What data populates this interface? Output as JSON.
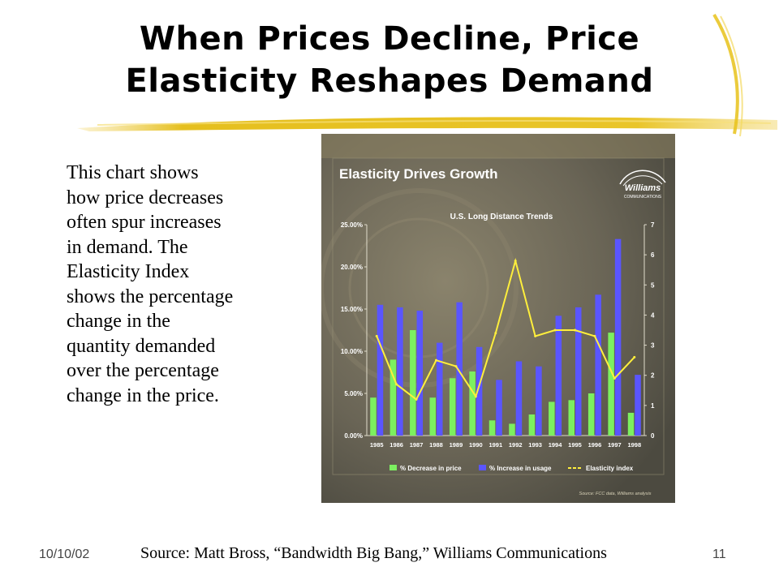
{
  "slide": {
    "title_line1": "When Prices Decline, Price",
    "title_line2": "Elasticity Reshapes Demand",
    "body_lines": [
      "This chart shows",
      "how price decreases",
      "often spur increases",
      "in demand. The",
      "Elasticity Index",
      "shows the percentage",
      "change in the",
      "quantity demanded",
      "over the percentage",
      "change in the price."
    ],
    "footer_date": "10/10/02",
    "footer_source": "Source: Matt Bross, “Bandwidth Big Bang,” Williams Communications",
    "page_number": "11"
  },
  "chart_data": {
    "type": "bar",
    "title": "Elasticity Drives Growth",
    "subtitle": "U.S. Long Distance Trends",
    "logo_text": "Williams",
    "logo_subtext": "COMMUNICATIONS",
    "categories": [
      "1985",
      "1986",
      "1987",
      "1988",
      "1989",
      "1990",
      "1991",
      "1992",
      "1993",
      "1994",
      "1995",
      "1996",
      "1997",
      "1998"
    ],
    "series": [
      {
        "name": "% Decrease in price",
        "kind": "bar",
        "axis": "left",
        "color": "#7cf060",
        "values": [
          4.5,
          9.0,
          12.5,
          4.5,
          6.8,
          7.6,
          1.8,
          1.4,
          2.5,
          4.0,
          4.2,
          5.0,
          12.2,
          2.7
        ]
      },
      {
        "name": "% Increase in usage",
        "kind": "bar",
        "axis": "left",
        "color": "#5a55ff",
        "values": [
          15.5,
          15.2,
          14.8,
          11.0,
          15.8,
          10.5,
          6.6,
          8.8,
          8.2,
          14.2,
          15.2,
          16.7,
          23.3,
          7.2
        ]
      },
      {
        "name": "Elasticity index",
        "kind": "line",
        "axis": "right",
        "color": "#ffef3c",
        "values": [
          3.3,
          1.7,
          1.2,
          2.5,
          2.3,
          1.3,
          3.4,
          5.8,
          3.3,
          3.5,
          3.5,
          3.3,
          1.9,
          2.6
        ]
      }
    ],
    "left_axis": {
      "ylim": [
        0,
        25
      ],
      "ticks": [
        "0.00%",
        "5.00%",
        "10.00%",
        "15.00%",
        "20.00%",
        "25.00%"
      ]
    },
    "right_axis": {
      "ylim": [
        0,
        7
      ],
      "ticks": [
        "0",
        "1",
        "2",
        "3",
        "4",
        "5",
        "6",
        "7"
      ]
    },
    "legend_position": "bottom",
    "source_note": "Source: FCC data, Williams analysis",
    "colors": {
      "panel": "#6e6a5e",
      "accent_yellow": "#e8c21a",
      "axis_text": "#ffffff"
    }
  }
}
